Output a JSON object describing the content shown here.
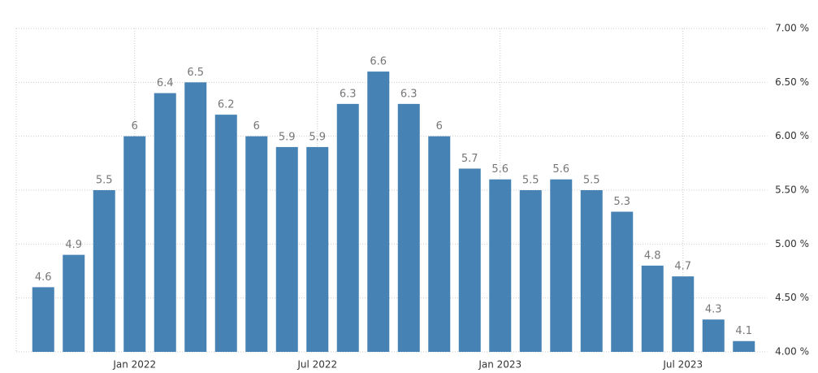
{
  "chart_data": {
    "type": "bar",
    "categories": [
      null,
      null,
      null,
      "Jan 2022",
      null,
      null,
      null,
      null,
      null,
      "Jul 2022",
      null,
      null,
      null,
      null,
      null,
      "Jan 2023",
      null,
      null,
      null,
      null,
      null,
      "Jul 2023",
      null,
      null
    ],
    "values": [
      4.6,
      4.9,
      5.5,
      6,
      6.4,
      6.5,
      6.2,
      6,
      5.9,
      5.9,
      6.3,
      6.6,
      6.3,
      6,
      5.7,
      5.6,
      5.5,
      5.6,
      5.5,
      5.3,
      4.8,
      4.7,
      4.3,
      4.1
    ],
    "color": "#4682b4",
    "ylim": [
      4,
      7
    ],
    "yticks": [
      {
        "value": 4,
        "label": "4.00 %"
      },
      {
        "value": 4.5,
        "label": "4.50 %"
      },
      {
        "value": 5,
        "label": "5.00 %"
      },
      {
        "value": 5.5,
        "label": "5.50 %"
      },
      {
        "value": 6,
        "label": "6.00 %"
      },
      {
        "value": 6.5,
        "label": "6.50 %"
      },
      {
        "value": 7,
        "label": "7.00 %"
      }
    ],
    "grid": true
  }
}
